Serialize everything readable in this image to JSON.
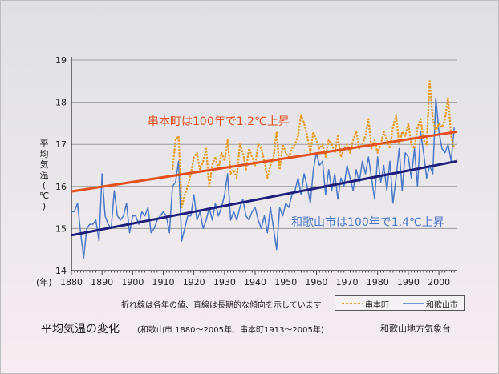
{
  "title": "平均気温の変化",
  "subtitle": "(和歌山市 1880〜2005年、串本町1913〜2005年)",
  "source": "和歌山地方気象台",
  "note": "折れ線は各年の値、直線は長期的な傾向を示しています",
  "ylabel_chars": [
    "平",
    "均",
    "気",
    "温",
    "(",
    "℃",
    ")"
  ],
  "xlabel_unit": "(年)",
  "legend": {
    "kushimoto": "串本町",
    "wakayama": "和歌山市"
  },
  "annotations": {
    "kushimoto_trend": "串本町は100年で1.2℃上昇",
    "wakayama_trend": "和歌山市は100年で1.4℃上昇"
  },
  "colors": {
    "kushimoto_line": "#e89a1a",
    "kushimoto_trend": "#e2501e",
    "wakayama_line": "#4a78c8",
    "wakayama_trend": "#1e1e7a",
    "grid": "#9a9a9a"
  },
  "chart_data": {
    "type": "line",
    "xlim": [
      1880,
      2006
    ],
    "ylim": [
      14,
      19
    ],
    "x_ticks": [
      "1880",
      "1890",
      "1900",
      "1910",
      "1920",
      "1930",
      "1940",
      "1950",
      "1960",
      "1970",
      "1980",
      "1990",
      "2000"
    ],
    "y_ticks": [
      "14",
      "15",
      "16",
      "17",
      "18",
      "19"
    ],
    "grid": "horizontal",
    "legend_position": "bottom-right",
    "series": [
      {
        "name": "和歌山市",
        "style": "solid",
        "start_year": 1880,
        "values": [
          15.4,
          15.4,
          15.6,
          14.9,
          14.3,
          15.0,
          15.1,
          15.1,
          15.2,
          14.7,
          16.3,
          15.3,
          15.1,
          15.0,
          15.9,
          15.3,
          15.2,
          15.3,
          15.6,
          14.9,
          15.3,
          15.3,
          15.1,
          15.4,
          15.3,
          15.5,
          14.9,
          15.0,
          15.2,
          15.3,
          15.4,
          15.3,
          14.9,
          16.0,
          16.1,
          16.6,
          14.7,
          15.0,
          15.3,
          15.3,
          15.8,
          15.2,
          15.4,
          15.0,
          15.2,
          15.5,
          15.2,
          15.6,
          15.3,
          15.5,
          15.8,
          16.3,
          15.2,
          15.4,
          15.2,
          15.5,
          15.7,
          15.3,
          15.2,
          15.4,
          15.5,
          15.2,
          15.0,
          15.3,
          14.9,
          15.5,
          15.0,
          14.5,
          15.5,
          15.3,
          15.6,
          15.5,
          15.8,
          15.9,
          16.2,
          15.8,
          16.3,
          16.0,
          15.6,
          16.4,
          16.8,
          16.5,
          16.6,
          15.8,
          16.4,
          15.9,
          16.3,
          15.7,
          16.2,
          16.0,
          16.5,
          16.2,
          15.9,
          16.4,
          16.1,
          16.6,
          16.3,
          16.7,
          16.2,
          15.7,
          16.7,
          16.1,
          16.5,
          15.9,
          16.6,
          15.6,
          16.2,
          16.9,
          15.9,
          16.8,
          16.7,
          16.2,
          16.9,
          16.0,
          17.3,
          16.8,
          16.2,
          16.5,
          16.3,
          18.1,
          17.3,
          16.9,
          16.8,
          17.0,
          16.6,
          17.4
        ]
      },
      {
        "name": "串本町",
        "style": "dotted",
        "start_year": 1913,
        "values": [
          16.4,
          17.1,
          17.2,
          15.5,
          15.8,
          16.0,
          16.3,
          16.7,
          16.8,
          16.4,
          16.6,
          16.9,
          16.0,
          16.5,
          16.7,
          16.4,
          16.8,
          16.6,
          17.1,
          16.3,
          16.4,
          16.2,
          17.0,
          16.8,
          16.4,
          16.9,
          16.7,
          16.5,
          17.0,
          16.9,
          16.6,
          16.2,
          16.5,
          16.7,
          17.3,
          16.4,
          17.0,
          16.8,
          16.7,
          16.9,
          17.0,
          17.2,
          17.7,
          17.5,
          17.2,
          16.8,
          17.3,
          17.1,
          16.9,
          17.0,
          16.7,
          17.1,
          17.0,
          16.8,
          17.2,
          16.7,
          16.9,
          17.0,
          16.8,
          17.1,
          17.3,
          16.9,
          17.0,
          17.2,
          17.6,
          16.9,
          17.1,
          16.8,
          17.0,
          17.3,
          17.1,
          16.9,
          17.4,
          17.7,
          17.0,
          17.3,
          17.2,
          17.5,
          17.0,
          16.9,
          17.4,
          17.6,
          17.1,
          17.0,
          18.5,
          17.6,
          17.3,
          17.5,
          17.4,
          17.6,
          18.1,
          17.2,
          16.9
        ]
      },
      {
        "name": "",
        "style": "trend",
        "x": [
          1880,
          2006
        ],
        "values": [
          15.88,
          17.3
        ]
      },
      {
        "name": "",
        "style": "trend",
        "x": [
          1880,
          2006
        ],
        "values": [
          14.84,
          16.6
        ]
      }
    ]
  }
}
